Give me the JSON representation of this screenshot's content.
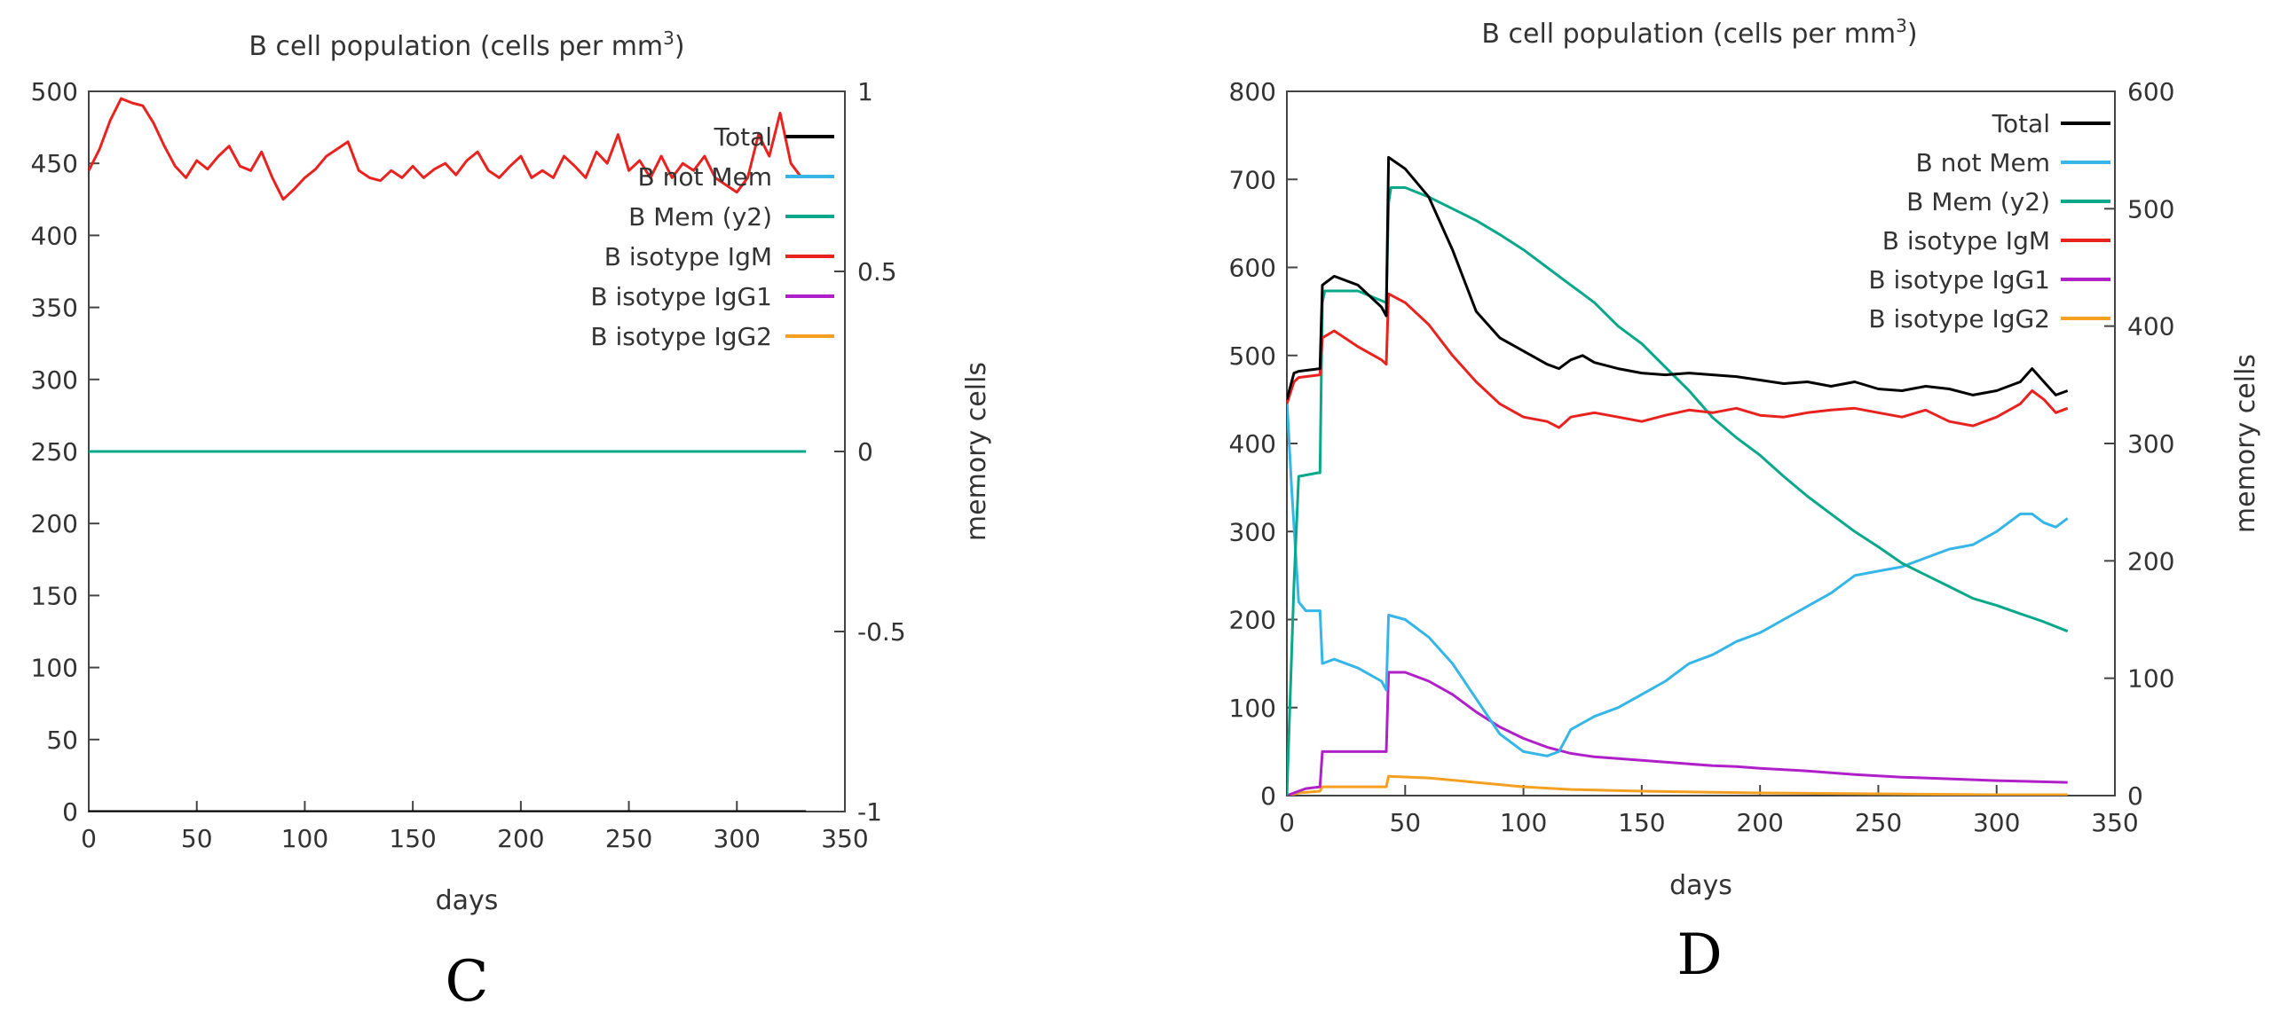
{
  "chart_data": [
    {
      "type": "line",
      "panel_label": "C",
      "title_prefix": "B cell population (cells per mm",
      "title_sup": "3",
      "title_suffix": ")",
      "xlabel": "days",
      "ylabel": "",
      "y2label": "memory cells",
      "xlim": [
        0,
        350
      ],
      "ylim": [
        0,
        500
      ],
      "y2lim": [
        -1,
        1
      ],
      "xticks": [
        "0",
        "50",
        "100",
        "150",
        "200",
        "250",
        "300",
        "350"
      ],
      "yticks": [
        "0",
        "50",
        "100",
        "150",
        "200",
        "250",
        "300",
        "350",
        "400",
        "450",
        "500"
      ],
      "y2ticks": [
        "-1",
        "-0.5",
        "0",
        "0.5",
        "1"
      ],
      "legend_position": "top-right",
      "series": [
        {
          "name": "Total",
          "color": "#000000",
          "axis": "y",
          "x": [
            0,
            332
          ],
          "values": [
            0,
            0
          ]
        },
        {
          "name": "B not Mem",
          "color": "#35b6e6",
          "axis": "y",
          "x": [
            0,
            332
          ],
          "values": [
            0,
            0
          ]
        },
        {
          "name": "B Mem (y2)",
          "color": "#0aa88a",
          "axis": "y2",
          "x": [
            0,
            332
          ],
          "values": [
            0,
            0
          ]
        },
        {
          "name": "B isotype IgM",
          "color": "#e8231f",
          "axis": "y",
          "x": [
            0,
            5,
            10,
            15,
            20,
            25,
            30,
            35,
            40,
            45,
            50,
            55,
            60,
            65,
            70,
            75,
            80,
            85,
            90,
            95,
            100,
            105,
            110,
            115,
            120,
            125,
            130,
            135,
            140,
            145,
            150,
            155,
            160,
            165,
            170,
            175,
            180,
            185,
            190,
            195,
            200,
            205,
            210,
            215,
            220,
            225,
            230,
            235,
            240,
            245,
            250,
            255,
            260,
            265,
            270,
            275,
            280,
            285,
            290,
            295,
            300,
            305,
            310,
            315,
            320,
            325,
            330
          ],
          "values": [
            445,
            460,
            480,
            495,
            492,
            490,
            478,
            462,
            448,
            440,
            452,
            446,
            455,
            462,
            448,
            445,
            458,
            440,
            425,
            432,
            440,
            446,
            455,
            460,
            465,
            445,
            440,
            438,
            445,
            440,
            448,
            440,
            446,
            450,
            442,
            452,
            458,
            445,
            440,
            448,
            455,
            440,
            445,
            440,
            455,
            448,
            440,
            458,
            450,
            470,
            445,
            452,
            440,
            455,
            440,
            450,
            445,
            455,
            440,
            435,
            430,
            440,
            470,
            455,
            485,
            450,
            440
          ]
        },
        {
          "name": "B isotype IgG1",
          "color": "#b020c8",
          "axis": "y",
          "x": [
            0,
            332
          ],
          "values": [
            0,
            0
          ]
        },
        {
          "name": "B isotype IgG2",
          "color": "#f5a020",
          "axis": "y",
          "x": [
            0,
            332
          ],
          "values": [
            0,
            0
          ]
        }
      ]
    },
    {
      "type": "line",
      "panel_label": "D",
      "title_prefix": "B cell population (cells per mm",
      "title_sup": "3",
      "title_suffix": ")",
      "xlabel": "days",
      "ylabel": "",
      "y2label": "memory cells",
      "xlim": [
        0,
        350
      ],
      "ylim": [
        0,
        800
      ],
      "y2lim": [
        0,
        600
      ],
      "xticks": [
        "0",
        "50",
        "100",
        "150",
        "200",
        "250",
        "300",
        "350"
      ],
      "yticks": [
        "0",
        "100",
        "200",
        "300",
        "400",
        "500",
        "600",
        "700",
        "800"
      ],
      "y2ticks": [
        "0",
        "100",
        "200",
        "300",
        "400",
        "500",
        "600"
      ],
      "legend_position": "top-right",
      "series": [
        {
          "name": "Total",
          "color": "#000000",
          "axis": "y",
          "x": [
            0,
            3,
            5,
            14,
            15,
            20,
            30,
            40,
            42,
            43,
            50,
            60,
            70,
            80,
            90,
            100,
            110,
            115,
            120,
            125,
            130,
            140,
            150,
            160,
            170,
            180,
            190,
            200,
            210,
            220,
            230,
            240,
            250,
            260,
            270,
            280,
            290,
            300,
            310,
            315,
            320,
            325,
            330
          ],
          "values": [
            450,
            480,
            482,
            485,
            580,
            590,
            580,
            555,
            545,
            725,
            712,
            680,
            620,
            550,
            520,
            505,
            490,
            485,
            495,
            500,
            492,
            485,
            480,
            478,
            480,
            478,
            476,
            472,
            468,
            470,
            465,
            470,
            462,
            460,
            465,
            462,
            455,
            460,
            470,
            485,
            470,
            455,
            460
          ]
        },
        {
          "name": "B not Mem",
          "color": "#35b6e6",
          "axis": "y",
          "x": [
            0,
            2,
            5,
            8,
            14,
            15,
            20,
            30,
            40,
            42,
            43,
            50,
            60,
            70,
            80,
            90,
            100,
            110,
            115,
            120,
            130,
            140,
            150,
            160,
            170,
            180,
            190,
            200,
            210,
            220,
            230,
            240,
            250,
            260,
            270,
            280,
            290,
            300,
            310,
            315,
            320,
            325,
            330
          ],
          "values": [
            450,
            350,
            220,
            210,
            210,
            150,
            155,
            145,
            130,
            120,
            205,
            200,
            180,
            150,
            110,
            70,
            50,
            45,
            50,
            75,
            90,
            100,
            115,
            130,
            150,
            160,
            175,
            185,
            200,
            215,
            230,
            250,
            255,
            260,
            270,
            280,
            285,
            300,
            320,
            320,
            310,
            305,
            315
          ]
        },
        {
          "name": "B Mem (y2)",
          "color": "#0aa88a",
          "axis": "y2",
          "x": [
            0,
            3,
            5,
            13,
            14,
            15,
            16,
            30,
            42,
            43,
            44,
            50,
            60,
            70,
            80,
            90,
            100,
            110,
            120,
            130,
            140,
            150,
            160,
            170,
            180,
            190,
            200,
            210,
            220,
            230,
            240,
            250,
            260,
            270,
            280,
            290,
            300,
            310,
            320,
            330
          ],
          "values": [
            0,
            180,
            272,
            275,
            275,
            420,
            430,
            430,
            420,
            505,
            518,
            518,
            510,
            500,
            490,
            478,
            465,
            450,
            435,
            420,
            400,
            385,
            365,
            345,
            322,
            305,
            290,
            272,
            255,
            240,
            225,
            212,
            198,
            188,
            178,
            168,
            162,
            155,
            148,
            140
          ]
        },
        {
          "name": "B isotype IgM",
          "color": "#e8231f",
          "axis": "y",
          "x": [
            0,
            3,
            5,
            14,
            15,
            20,
            30,
            40,
            42,
            43,
            50,
            60,
            70,
            80,
            90,
            100,
            110,
            115,
            120,
            130,
            140,
            150,
            160,
            170,
            180,
            190,
            200,
            210,
            220,
            230,
            240,
            250,
            260,
            270,
            280,
            290,
            300,
            310,
            315,
            320,
            325,
            330
          ],
          "values": [
            445,
            470,
            475,
            478,
            520,
            528,
            510,
            495,
            490,
            570,
            560,
            535,
            500,
            470,
            445,
            430,
            425,
            418,
            430,
            435,
            430,
            425,
            432,
            438,
            435,
            440,
            432,
            430,
            435,
            438,
            440,
            435,
            430,
            438,
            425,
            420,
            430,
            445,
            460,
            450,
            435,
            440
          ]
        },
        {
          "name": "B isotype IgG1",
          "color": "#b020c8",
          "axis": "y",
          "x": [
            0,
            5,
            8,
            14,
            15,
            20,
            30,
            42,
            43,
            50,
            60,
            70,
            80,
            90,
            100,
            110,
            120,
            130,
            140,
            150,
            160,
            170,
            180,
            190,
            200,
            220,
            240,
            260,
            280,
            300,
            330
          ],
          "values": [
            0,
            5,
            8,
            10,
            50,
            50,
            50,
            50,
            140,
            140,
            130,
            115,
            95,
            78,
            65,
            55,
            48,
            44,
            42,
            40,
            38,
            36,
            34,
            33,
            31,
            28,
            24,
            21,
            19,
            17,
            15
          ]
        },
        {
          "name": "B isotype IgG2",
          "color": "#f5a020",
          "axis": "y",
          "x": [
            0,
            5,
            14,
            15,
            30,
            42,
            43,
            60,
            80,
            100,
            120,
            150,
            200,
            250,
            300,
            330
          ],
          "values": [
            0,
            3,
            5,
            10,
            10,
            10,
            22,
            20,
            15,
            10,
            7,
            5,
            3,
            2,
            1,
            1
          ]
        }
      ]
    }
  ]
}
